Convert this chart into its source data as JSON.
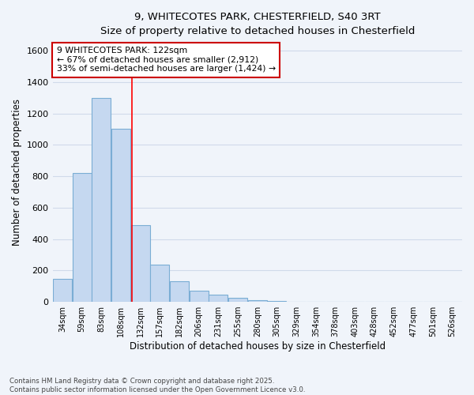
{
  "title_line1": "9, WHITECOTES PARK, CHESTERFIELD, S40 3RT",
  "title_line2": "Size of property relative to detached houses in Chesterfield",
  "xlabel": "Distribution of detached houses by size in Chesterfield",
  "ylabel": "Number of detached properties",
  "categories": [
    "34sqm",
    "59sqm",
    "83sqm",
    "108sqm",
    "132sqm",
    "157sqm",
    "182sqm",
    "206sqm",
    "231sqm",
    "255sqm",
    "280sqm",
    "305sqm",
    "329sqm",
    "354sqm",
    "378sqm",
    "403sqm",
    "428sqm",
    "452sqm",
    "477sqm",
    "501sqm",
    "526sqm"
  ],
  "values": [
    148,
    820,
    1300,
    1100,
    490,
    235,
    130,
    70,
    48,
    25,
    12,
    3,
    2,
    0,
    0,
    0,
    0,
    0,
    0,
    0,
    0
  ],
  "bar_color": "#c5d8f0",
  "bar_edge_color": "#7aadd4",
  "background_color": "#f0f4fa",
  "plot_bg_color": "#f0f4fa",
  "grid_color": "#d0daea",
  "ylim": [
    0,
    1650
  ],
  "yticks": [
    0,
    200,
    400,
    600,
    800,
    1000,
    1200,
    1400,
    1600
  ],
  "red_line_x": 3.583,
  "annotation_text_line1": "9 WHITECOTES PARK: 122sqm",
  "annotation_text_line2": "← 67% of detached houses are smaller (2,912)",
  "annotation_text_line3": "33% of semi-detached houses are larger (1,424) →",
  "annotation_box_facecolor": "#ffffff",
  "annotation_box_edgecolor": "#cc0000",
  "footnote_line1": "Contains HM Land Registry data © Crown copyright and database right 2025.",
  "footnote_line2": "Contains public sector information licensed under the Open Government Licence v3.0."
}
